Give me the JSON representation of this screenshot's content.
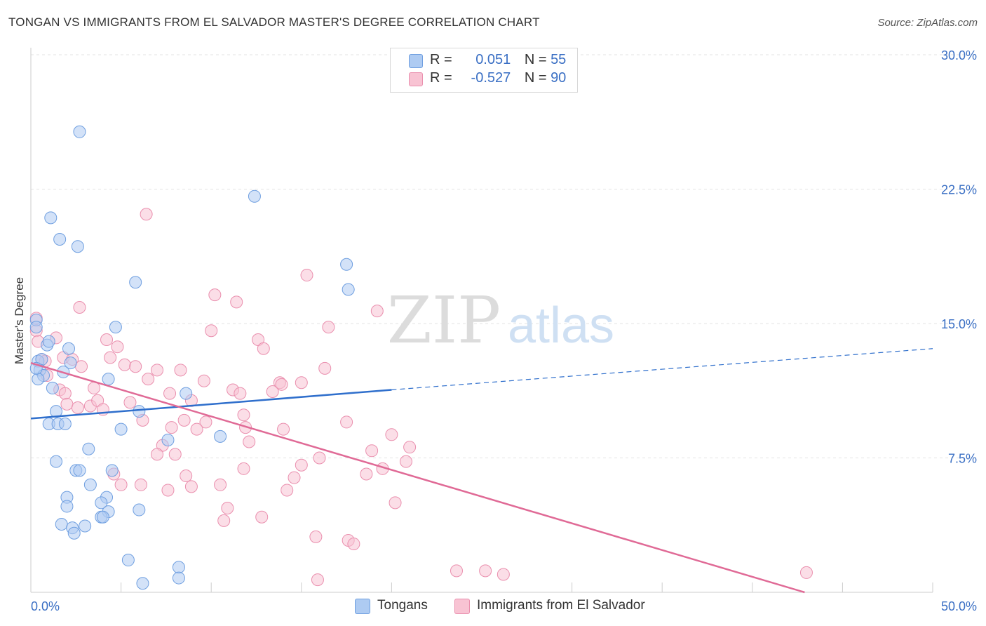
{
  "title": "TONGAN VS IMMIGRANTS FROM EL SALVADOR MASTER'S DEGREE CORRELATION CHART",
  "source": "Source: ZipAtlas.com",
  "watermark": {
    "zip": "ZIP",
    "atlas": "atlas"
  },
  "legend": {
    "rows": [
      {
        "r_label": "R =",
        "r_value": "0.051",
        "n_label": "N =",
        "n_value": "55"
      },
      {
        "r_label": "R =",
        "r_value": "-0.527",
        "n_label": "N =",
        "n_value": "90"
      }
    ]
  },
  "bottom_legend": {
    "series1": "Tongans",
    "series2": "Immigrants from El Salvador"
  },
  "colors": {
    "blue_fill": "#aecbf2",
    "blue_stroke": "#6f9fe0",
    "blue_line": "#2f6fcc",
    "pink_fill": "#f8c3d3",
    "pink_stroke": "#ea8fae",
    "pink_line": "#e06a96",
    "axis_label": "#3a6fc4",
    "grid": "#e3e3e3"
  },
  "chart_data": {
    "type": "scatter",
    "title": "TONGAN VS IMMIGRANTS FROM EL SALVADOR MASTER'S DEGREE CORRELATION CHART",
    "xlabel": "",
    "ylabel": "Master's Degree",
    "xlim": [
      0,
      50
    ],
    "ylim": [
      0,
      30
    ],
    "x_tick_labels": [
      {
        "value": 0,
        "label": "0.0%"
      },
      {
        "value": 50,
        "label": "50.0%"
      }
    ],
    "y_tick_labels": [
      {
        "value": 7.5,
        "label": "7.5%"
      },
      {
        "value": 15,
        "label": "15.0%"
      },
      {
        "value": 22.5,
        "label": "22.5%"
      },
      {
        "value": 30,
        "label": "30.0%"
      }
    ],
    "x_minor_ticks": [
      5,
      10,
      15,
      20,
      30,
      35,
      40,
      45
    ],
    "grid": true,
    "series": [
      {
        "name": "Tongans",
        "color": "blue",
        "trend": {
          "x0": 0,
          "y0": 9.7,
          "x1": 20,
          "y1": 11.3,
          "dash_to_x": 50,
          "dash_to_y": 13.6
        },
        "points": [
          [
            2.7,
            25.7
          ],
          [
            1.1,
            20.9
          ],
          [
            1.6,
            19.7
          ],
          [
            2.6,
            19.3
          ],
          [
            12.4,
            22.1
          ],
          [
            17.5,
            18.3
          ],
          [
            5.8,
            17.3
          ],
          [
            17.6,
            16.9
          ],
          [
            4.7,
            14.8
          ],
          [
            0.3,
            15.2
          ],
          [
            0.3,
            14.8
          ],
          [
            0.9,
            13.8
          ],
          [
            1.0,
            14.0
          ],
          [
            2.1,
            13.6
          ],
          [
            0.4,
            12.9
          ],
          [
            0.6,
            13.0
          ],
          [
            0.5,
            12.4
          ],
          [
            2.2,
            12.8
          ],
          [
            0.7,
            12.1
          ],
          [
            1.8,
            12.3
          ],
          [
            0.4,
            11.9
          ],
          [
            4.3,
            11.9
          ],
          [
            1.2,
            11.4
          ],
          [
            8.6,
            11.1
          ],
          [
            1.4,
            10.1
          ],
          [
            6.0,
            10.1
          ],
          [
            1.0,
            9.4
          ],
          [
            1.5,
            9.4
          ],
          [
            1.9,
            9.4
          ],
          [
            5.0,
            9.1
          ],
          [
            10.5,
            8.7
          ],
          [
            7.6,
            8.5
          ],
          [
            3.2,
            8.0
          ],
          [
            1.4,
            7.3
          ],
          [
            2.5,
            6.8
          ],
          [
            2.7,
            6.8
          ],
          [
            4.5,
            6.8
          ],
          [
            3.3,
            6.0
          ],
          [
            2.0,
            5.3
          ],
          [
            4.2,
            5.3
          ],
          [
            3.9,
            5.0
          ],
          [
            2.0,
            4.8
          ],
          [
            6.0,
            4.6
          ],
          [
            4.3,
            4.5
          ],
          [
            3.9,
            4.2
          ],
          [
            4.0,
            4.2
          ],
          [
            1.7,
            3.8
          ],
          [
            3.0,
            3.7
          ],
          [
            2.3,
            3.6
          ],
          [
            2.4,
            3.3
          ],
          [
            5.4,
            1.8
          ],
          [
            8.2,
            1.4
          ],
          [
            8.2,
            0.8
          ],
          [
            6.2,
            0.5
          ],
          [
            0.3,
            12.5
          ]
        ]
      },
      {
        "name": "Immigrants from El Salvador",
        "color": "pink",
        "trend": {
          "x0": 0,
          "y0": 12.8,
          "x1": 42.9,
          "y1": 0
        },
        "points": [
          [
            0.3,
            15.3
          ],
          [
            0.3,
            14.6
          ],
          [
            6.4,
            21.1
          ],
          [
            15.3,
            17.7
          ],
          [
            10.2,
            16.6
          ],
          [
            11.4,
            16.2
          ],
          [
            2.7,
            15.9
          ],
          [
            19.2,
            15.7
          ],
          [
            16.5,
            14.8
          ],
          [
            10.0,
            14.6
          ],
          [
            1.4,
            14.2
          ],
          [
            4.2,
            14.1
          ],
          [
            12.6,
            14.1
          ],
          [
            4.8,
            13.7
          ],
          [
            12.9,
            13.6
          ],
          [
            1.8,
            13.1
          ],
          [
            2.3,
            13.0
          ],
          [
            4.4,
            13.1
          ],
          [
            0.6,
            13.0
          ],
          [
            2.8,
            12.6
          ],
          [
            5.2,
            12.7
          ],
          [
            5.8,
            12.6
          ],
          [
            7.0,
            12.4
          ],
          [
            8.3,
            12.4
          ],
          [
            16.3,
            12.5
          ],
          [
            0.9,
            12.1
          ],
          [
            6.5,
            11.9
          ],
          [
            9.6,
            11.8
          ],
          [
            13.8,
            11.7
          ],
          [
            13.9,
            11.6
          ],
          [
            15.0,
            11.7
          ],
          [
            3.5,
            11.4
          ],
          [
            1.6,
            11.3
          ],
          [
            1.9,
            11.1
          ],
          [
            11.2,
            11.3
          ],
          [
            11.6,
            11.1
          ],
          [
            13.4,
            11.2
          ],
          [
            7.7,
            11.1
          ],
          [
            8.9,
            10.7
          ],
          [
            5.5,
            10.6
          ],
          [
            2.0,
            10.5
          ],
          [
            3.3,
            10.4
          ],
          [
            2.6,
            10.3
          ],
          [
            3.7,
            10.7
          ],
          [
            4.0,
            10.2
          ],
          [
            11.8,
            9.9
          ],
          [
            6.2,
            9.6
          ],
          [
            8.5,
            9.6
          ],
          [
            9.7,
            9.5
          ],
          [
            17.5,
            9.5
          ],
          [
            7.8,
            9.2
          ],
          [
            9.2,
            9.1
          ],
          [
            11.9,
            9.2
          ],
          [
            14.0,
            9.1
          ],
          [
            20.0,
            8.8
          ],
          [
            12.1,
            8.4
          ],
          [
            7.3,
            8.2
          ],
          [
            21.0,
            8.1
          ],
          [
            18.9,
            7.9
          ],
          [
            7.0,
            7.7
          ],
          [
            8.0,
            7.7
          ],
          [
            16.0,
            7.5
          ],
          [
            15.0,
            7.1
          ],
          [
            11.8,
            6.9
          ],
          [
            19.5,
            6.9
          ],
          [
            20.8,
            7.3
          ],
          [
            4.6,
            6.6
          ],
          [
            8.6,
            6.5
          ],
          [
            14.6,
            6.4
          ],
          [
            18.6,
            6.6
          ],
          [
            5.0,
            6.0
          ],
          [
            6.1,
            6.0
          ],
          [
            8.9,
            5.9
          ],
          [
            10.5,
            6.0
          ],
          [
            7.6,
            5.7
          ],
          [
            14.2,
            5.7
          ],
          [
            20.2,
            5.0
          ],
          [
            10.9,
            4.7
          ],
          [
            12.8,
            4.2
          ],
          [
            10.7,
            4.0
          ],
          [
            15.8,
            3.1
          ],
          [
            17.6,
            2.9
          ],
          [
            17.9,
            2.7
          ],
          [
            23.6,
            1.2
          ],
          [
            25.2,
            1.2
          ],
          [
            26.2,
            1.0
          ],
          [
            43.0,
            1.1
          ],
          [
            15.9,
            0.7
          ],
          [
            0.4,
            14.0
          ],
          [
            0.8,
            12.9
          ]
        ]
      }
    ]
  }
}
